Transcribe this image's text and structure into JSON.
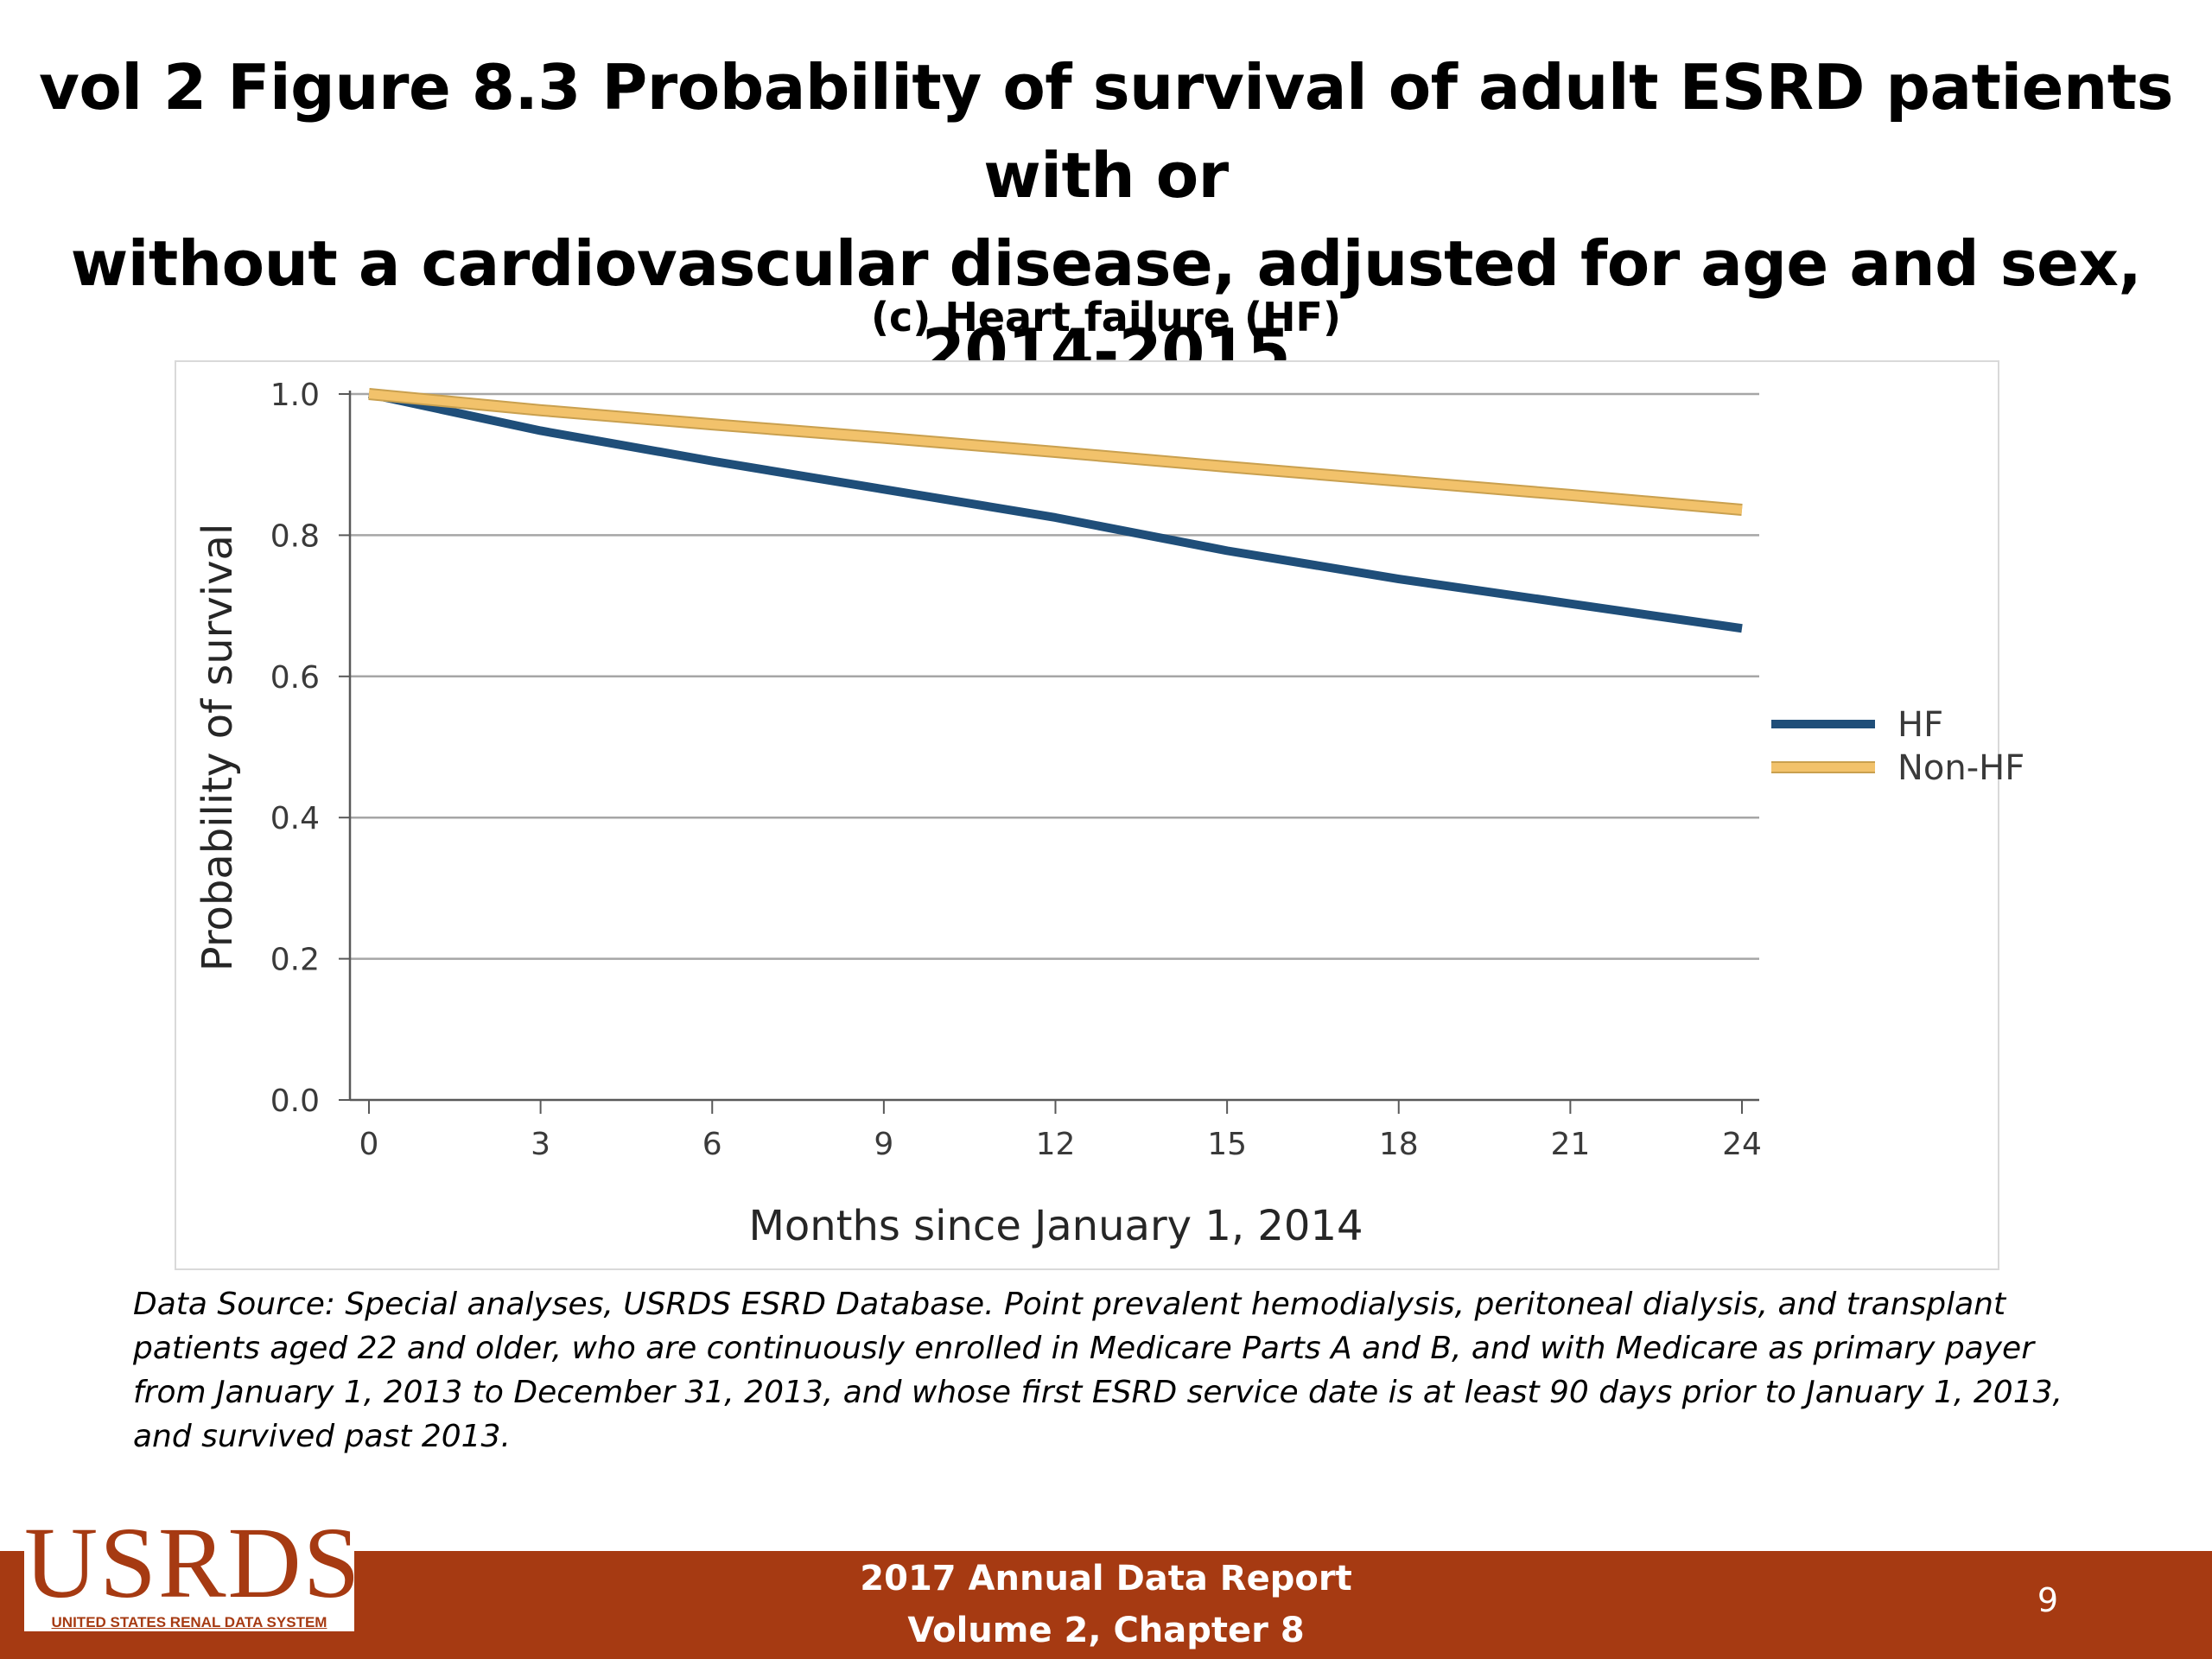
{
  "slide": {
    "title_line1": "vol 2 Figure 8.3 Probability of survival of adult ESRD patients with or",
    "title_line2": "without a cardiovascular disease, adjusted for age and sex, 2014-2015",
    "source_note": "Data Source: Special analyses, USRDS ESRD Database. Point prevalent hemodialysis, peritoneal dialysis, and transplant patients aged 22 and older, who are continuously enrolled in Medicare Parts A and B, and with Medicare as primary payer from January 1, 2013 to December 31, 2013, and whose first ESRD service date is at least 90 days prior to January 1, 2013, and survived past 2013.",
    "footer_line1": "2017 Annual Data Report",
    "footer_line2": "Volume 2, Chapter 8",
    "page_number": "9",
    "logo_text": "USRDS",
    "logo_subtext": "UNITED STATES RENAL DATA SYSTEM",
    "colors": {
      "footer": "#a63a12",
      "hf": "#1f4e79",
      "non_hf": "#f2c26b"
    }
  },
  "chart_data": {
    "type": "line",
    "title": "(c) Heart failure (HF)",
    "xlabel": "Months since January 1, 2014",
    "ylabel": "Probability of survival",
    "xlim": [
      0,
      24
    ],
    "ylim": [
      0,
      1.0
    ],
    "xticks": [
      0,
      3,
      6,
      9,
      12,
      15,
      18,
      21,
      24
    ],
    "yticks": [
      "0.0",
      "0.2",
      "0.4",
      "0.6",
      "0.8",
      "1.0"
    ],
    "grid": "horizontal",
    "legend_position": "right",
    "series": [
      {
        "name": "HF",
        "color": "#1f4e79",
        "x": [
          0,
          3,
          6,
          9,
          12,
          15,
          18,
          21,
          24
        ],
        "values": [
          1.0,
          0.948,
          0.905,
          0.865,
          0.825,
          0.778,
          0.738,
          0.703,
          0.668
        ]
      },
      {
        "name": "Non-HF",
        "color": "#f2c26b",
        "x": [
          0,
          3,
          6,
          9,
          12,
          15,
          18,
          21,
          24
        ],
        "values": [
          1.0,
          0.977,
          0.957,
          0.938,
          0.918,
          0.897,
          0.877,
          0.857,
          0.836
        ]
      }
    ]
  }
}
